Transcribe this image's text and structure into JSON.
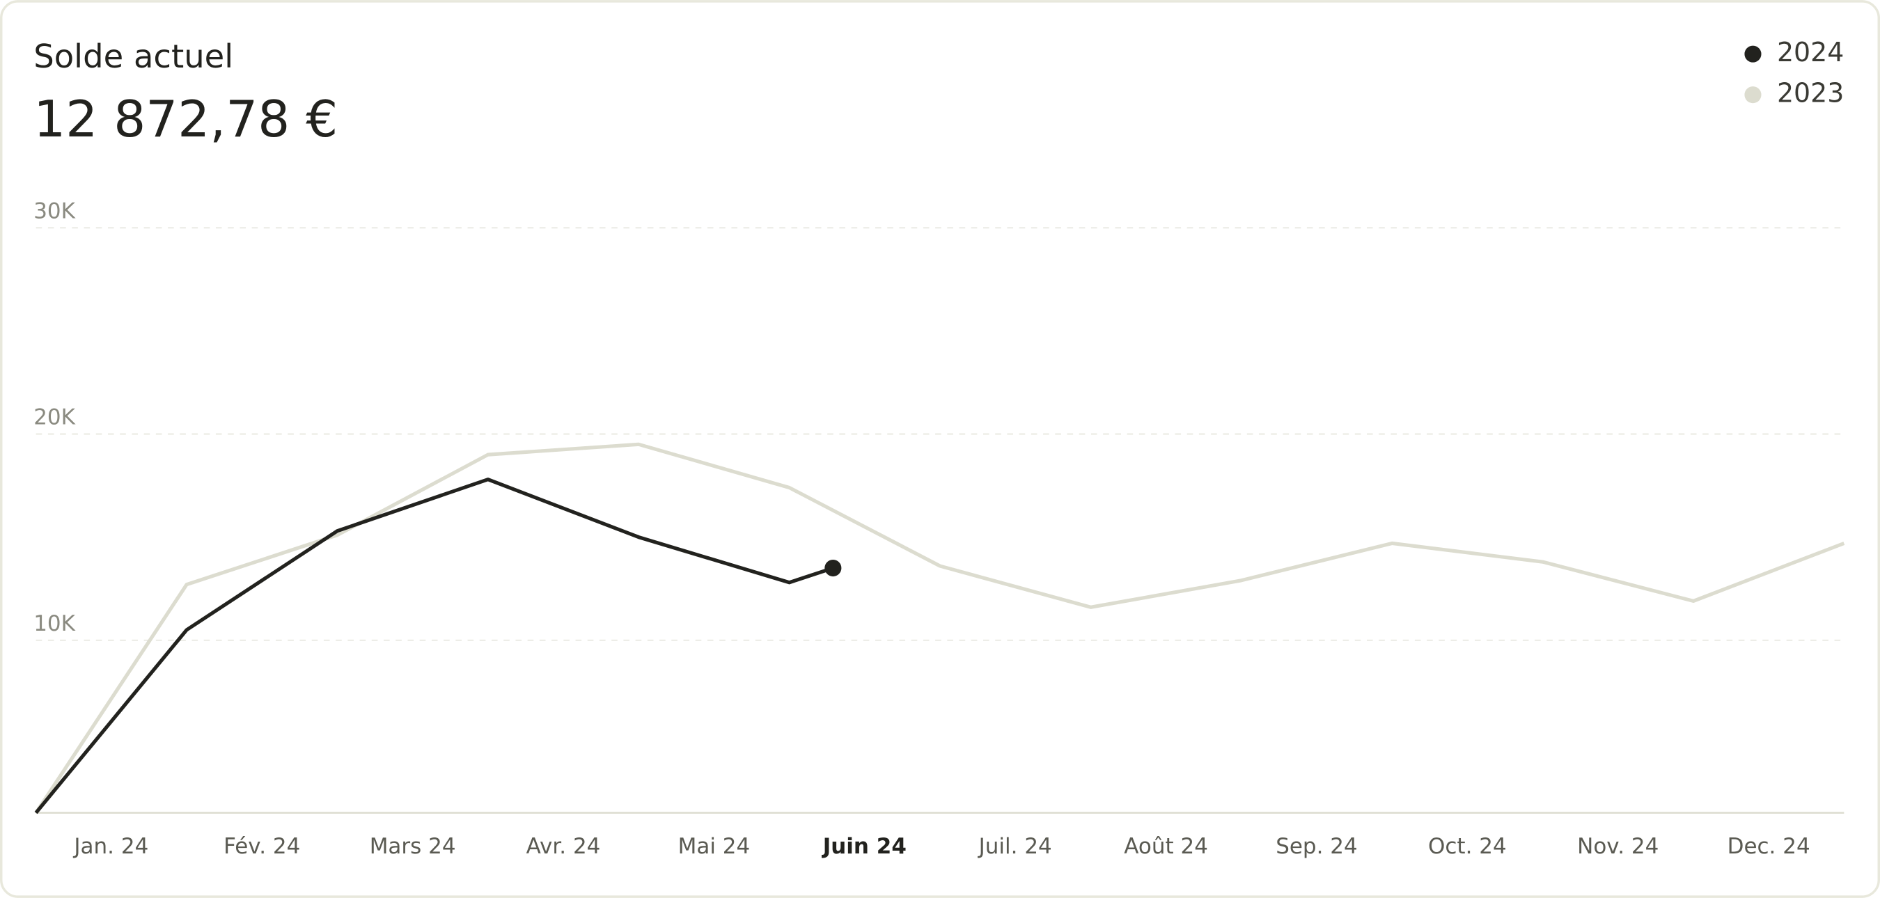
{
  "chart_data": {
    "type": "line",
    "title": "Solde actuel",
    "subtitle": "12 872,78 €",
    "categories": [
      "Jan. 24",
      "Fév. 24",
      "Mars 24",
      "Avr. 24",
      "Mai 24",
      "Juin 24",
      "Juil. 24",
      "Août 24",
      "Sep. 24",
      "Oct. 24",
      "Nov. 24",
      "Dec. 24"
    ],
    "highlight_category": 5,
    "xlim": [
      0,
      12
    ],
    "ylim": [
      1630,
      30000
    ],
    "yticks": [
      {
        "value": 10000,
        "label": "10K"
      },
      {
        "value": 20000,
        "label": "20K"
      },
      {
        "value": 30000,
        "label": "30K"
      }
    ],
    "grid": true,
    "legend": "top-right",
    "series": [
      {
        "name": "2024",
        "color": "#22221e",
        "end_marker": true,
        "x": [
          0,
          1,
          2,
          3,
          4,
          5,
          5.29
        ],
        "values": [
          1630,
          10500,
          15300,
          17800,
          15000,
          12800,
          13500
        ]
      },
      {
        "name": "2023",
        "color": "#dcdccf",
        "end_marker": false,
        "x": [
          0,
          1,
          2,
          3,
          4,
          5,
          6,
          7,
          8,
          9,
          10,
          11,
          12
        ],
        "values": [
          1630,
          12700,
          15100,
          19000,
          19500,
          17400,
          13600,
          11600,
          12900,
          14700,
          13800,
          11900,
          14700
        ]
      }
    ]
  }
}
